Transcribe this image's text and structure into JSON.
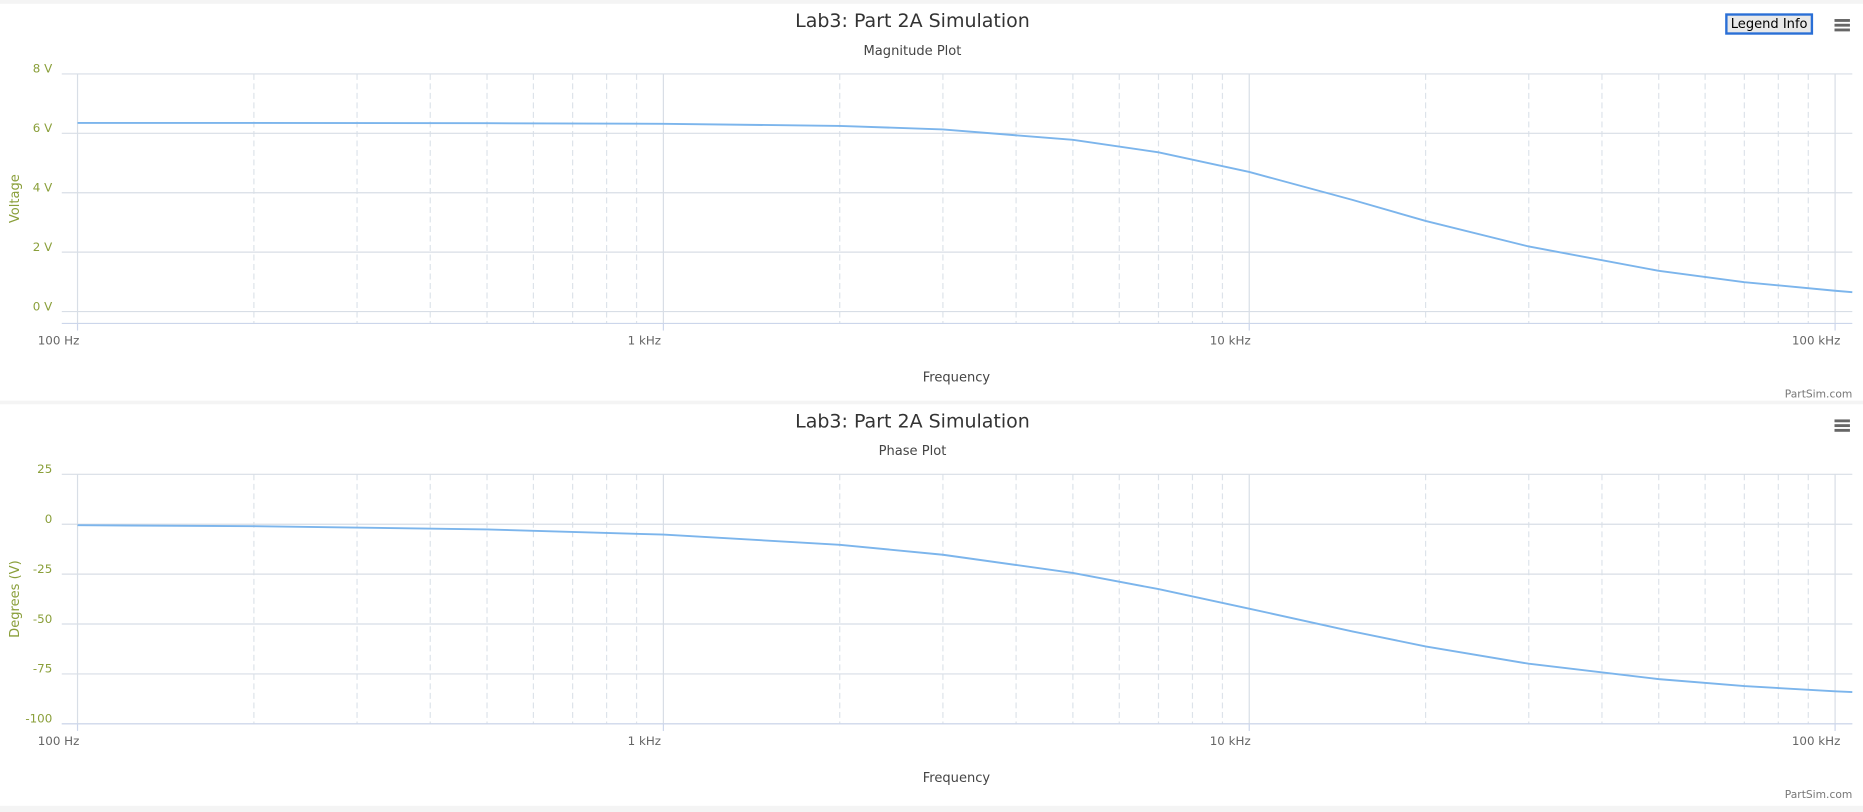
{
  "chart_data": [
    {
      "type": "line",
      "title": "Lab3: Part 2A Simulation",
      "subtitle": "Magnitude Plot",
      "x_label": "Frequency",
      "y_label": "Voltage",
      "credits": "PartSim.com",
      "x_log": true,
      "xlim": [
        94,
        107000
      ],
      "xticks": [
        {
          "value": 100,
          "label": "100 Hz"
        },
        {
          "value": 1000,
          "label": "1 kHz"
        },
        {
          "value": 10000,
          "label": "10 kHz"
        },
        {
          "value": 100000,
          "label": "100 kHz"
        }
      ],
      "x_minor_grid": [
        200,
        300,
        400,
        500,
        600,
        700,
        800,
        900,
        2000,
        3000,
        4000,
        5000,
        6000,
        7000,
        8000,
        9000,
        20000,
        30000,
        40000,
        50000,
        60000,
        70000,
        80000,
        90000
      ],
      "ylim": [
        -0.4,
        8
      ],
      "yticks": [
        {
          "value": 0,
          "label": "0 V"
        },
        {
          "value": 2,
          "label": "2 V"
        },
        {
          "value": 4,
          "label": "4 V"
        },
        {
          "value": 6,
          "label": "6 V"
        },
        {
          "value": 8,
          "label": "8 V"
        }
      ],
      "grid": true,
      "color": "#7cb5ec",
      "x": [
        100,
        200,
        500,
        1000,
        2000,
        3000,
        5000,
        7000,
        10000,
        15000,
        20000,
        30000,
        50000,
        70000,
        100000,
        107000
      ],
      "values": [
        6.35,
        6.35,
        6.34,
        6.32,
        6.25,
        6.13,
        5.78,
        5.36,
        4.7,
        3.76,
        3.05,
        2.19,
        1.37,
        0.99,
        0.7,
        0.65
      ]
    },
    {
      "type": "line",
      "title": "Lab3: Part 2A Simulation",
      "subtitle": "Phase Plot",
      "x_label": "Frequency",
      "y_label": "Degrees (V)",
      "credits": "PartSim.com",
      "x_log": true,
      "xlim": [
        94,
        107000
      ],
      "xticks": [
        {
          "value": 100,
          "label": "100 Hz"
        },
        {
          "value": 1000,
          "label": "1 kHz"
        },
        {
          "value": 10000,
          "label": "10 kHz"
        },
        {
          "value": 100000,
          "label": "100 kHz"
        }
      ],
      "x_minor_grid": [
        200,
        300,
        400,
        500,
        600,
        700,
        800,
        900,
        2000,
        3000,
        4000,
        5000,
        6000,
        7000,
        8000,
        9000,
        20000,
        30000,
        40000,
        50000,
        60000,
        70000,
        80000,
        90000
      ],
      "ylim": [
        -100,
        25
      ],
      "yticks": [
        25,
        0,
        -25,
        -50,
        -75,
        -100
      ],
      "grid": true,
      "color": "#7cb5ec",
      "x": [
        100,
        200,
        500,
        1000,
        2000,
        3000,
        5000,
        7000,
        10000,
        15000,
        20000,
        30000,
        50000,
        70000,
        100000,
        107000
      ],
      "values": [
        -0.5,
        -1,
        -2.6,
        -5.2,
        -10.3,
        -15.3,
        -24.4,
        -32.5,
        -42.3,
        -53.7,
        -61.2,
        -69.9,
        -77.6,
        -81.1,
        -83.7,
        -84.1
      ]
    }
  ],
  "button": "Legend Info"
}
